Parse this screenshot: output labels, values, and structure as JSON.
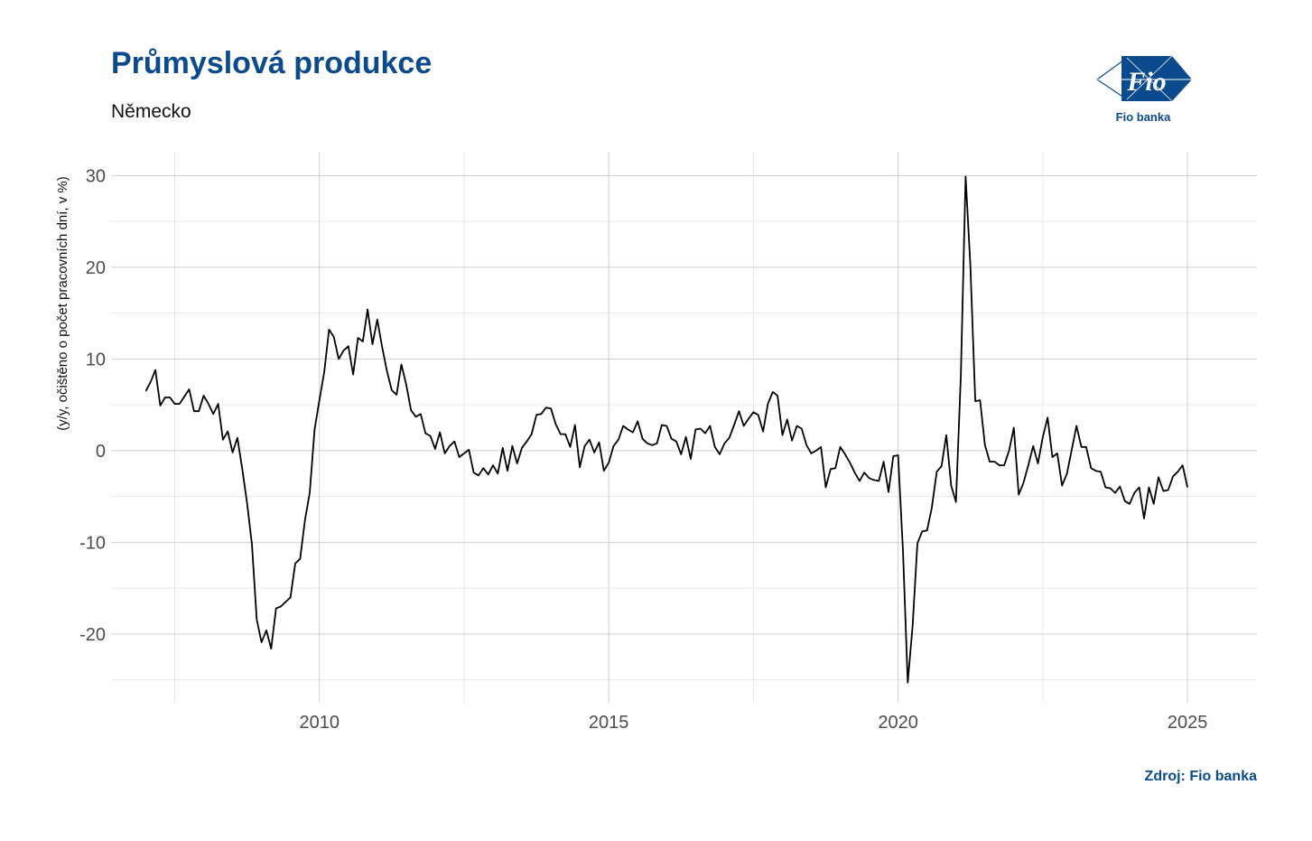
{
  "header": {
    "title": "Průmyslová produkce",
    "subtitle": "Německo"
  },
  "logo": {
    "wordmark": "Fio",
    "caption": "Fio banka",
    "color": "#0b4a8c"
  },
  "source": "Zdroj: Fio banka",
  "chart_data": {
    "type": "line",
    "title": "Průmyslová produkce",
    "subtitle": "Německo",
    "xlabel": "",
    "ylabel": "(y/y, očištěno o počet pracovních dní, v %)",
    "xlim": [
      2006.4,
      2026.2
    ],
    "ylim": [
      -27.5,
      32.6
    ],
    "xticks": [
      2010,
      2015,
      2020,
      2025
    ],
    "yticks": [
      -20,
      -10,
      0,
      10,
      20,
      30
    ],
    "grid": true,
    "line_color": "#000000",
    "series": [
      {
        "x_start": 2007.0,
        "x_step": 0.0833333,
        "values": [
          6.5,
          7.5,
          8.8,
          4.9,
          5.8,
          5.8,
          5.1,
          5.1,
          5.9,
          6.7,
          4.3,
          4.3,
          6.0,
          5.1,
          4.0,
          5.1,
          1.2,
          2.1,
          -0.2,
          1.4,
          -2.0,
          -5.7,
          -10.2,
          -18.4,
          -20.9,
          -19.6,
          -21.6,
          -17.2,
          -17.0,
          -16.5,
          -16.0,
          -12.3,
          -11.8,
          -7.6,
          -4.6,
          2.3,
          5.5,
          8.6,
          13.2,
          12.4,
          10.0,
          10.9,
          11.4,
          8.3,
          12.3,
          11.9,
          15.4,
          11.6,
          14.3,
          11.3,
          8.7,
          6.6,
          6.1,
          9.4,
          7.2,
          4.4,
          3.7,
          4.0,
          1.9,
          1.6,
          0.2,
          2.0,
          -0.3,
          0.5,
          1.0,
          -0.7,
          -0.3,
          0.1,
          -2.4,
          -2.7,
          -1.9,
          -2.6,
          -1.6,
          -2.5,
          0.3,
          -2.2,
          0.5,
          -1.4,
          0.3,
          1.0,
          1.8,
          3.9,
          4.0,
          4.7,
          4.6,
          2.9,
          1.8,
          1.8,
          0.4,
          2.8,
          -1.8,
          0.5,
          1.2,
          -0.2,
          0.9,
          -2.2,
          -1.3,
          0.5,
          1.2,
          2.7,
          2.3,
          2.0,
          3.2,
          1.3,
          0.8,
          0.6,
          0.8,
          2.8,
          2.7,
          1.3,
          1.0,
          -0.4,
          1.5,
          -0.9,
          2.3,
          2.4,
          1.9,
          2.7,
          0.4,
          -0.4,
          0.8,
          1.4,
          2.8,
          4.3,
          2.7,
          3.5,
          4.2,
          3.9,
          2.1,
          5.1,
          6.4,
          6.0,
          1.7,
          3.4,
          1.1,
          2.7,
          2.4,
          0.6,
          -0.3,
          0.0,
          0.4,
          -4.0,
          -2.0,
          -1.9,
          0.4,
          -0.4,
          -1.3,
          -2.4,
          -3.3,
          -2.4,
          -3.0,
          -3.2,
          -3.3,
          -1.2,
          -4.5,
          -0.6,
          -0.5,
          -10.9,
          -25.3,
          -19.1,
          -10.1,
          -8.8,
          -8.7,
          -6.2,
          -2.3,
          -1.7,
          1.7,
          -3.8,
          -5.6,
          8.2,
          29.9,
          20.1,
          5.4,
          5.5,
          0.6,
          -1.2,
          -1.2,
          -1.6,
          -1.6,
          0.0,
          2.5,
          -4.8,
          -3.5,
          -1.6,
          0.5,
          -1.4,
          1.5,
          3.6,
          -0.7,
          -0.3,
          -3.8,
          -2.5,
          0.1,
          2.7,
          0.4,
          0.4,
          -1.9,
          -2.2,
          -2.3,
          -4.0,
          -4.1,
          -4.6,
          -3.9,
          -5.5,
          -5.8,
          -4.6,
          -4.0,
          -7.4,
          -4.0,
          -5.8,
          -2.9,
          -4.4,
          -4.3,
          -2.8,
          -2.3,
          -1.6,
          -4.0
        ]
      }
    ]
  }
}
